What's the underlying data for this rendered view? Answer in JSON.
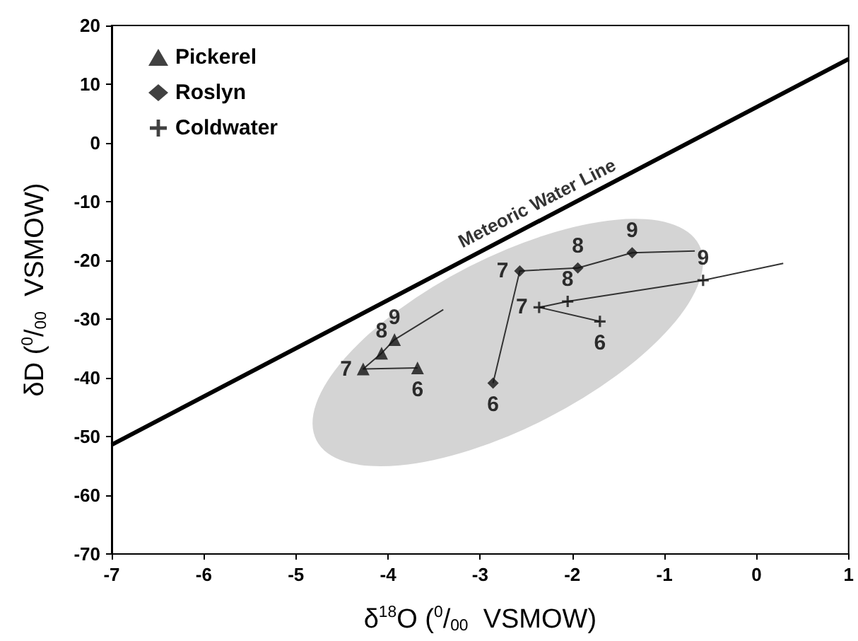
{
  "chart_data": {
    "type": "scatter",
    "xlabel": "δ$^{18}$O ($^{0}$/$_{00}$  VSMOW)",
    "ylabel": "δD ($^{0}$/$_{00}$  VSMOW)",
    "xlim": [
      -7,
      1
    ],
    "xticks": [
      -7,
      -6,
      -5,
      -4,
      -3,
      -2,
      -1,
      0,
      1
    ],
    "ylim": [
      -70,
      20
    ],
    "yticks": [
      -70,
      -60,
      -50,
      -40,
      -30,
      -20,
      -10,
      0,
      10,
      20
    ],
    "legend": "top left",
    "series": [
      {
        "name": "Pickerel",
        "marker": "triangle",
        "color": "#111111",
        "x": [
          -3.68,
          -4.27,
          -4.07,
          -3.93
        ],
        "values": [
          -38.3,
          -38.5,
          -35.8,
          -33.5
        ]
      },
      {
        "name": "Roslyn",
        "marker": "diamond",
        "color": "#111111",
        "x": [
          -2.86,
          -2.57,
          -1.94,
          -1.35
        ],
        "values": [
          -40.9,
          -21.8,
          -21.3,
          -18.7
        ]
      },
      {
        "name": "Coldwater",
        "marker": "cross",
        "color": "#111111",
        "x": [
          -1.7,
          -2.36,
          -2.05,
          -0.58
        ],
        "values": [
          -30.4,
          -28.0,
          -27.0,
          -23.4
        ]
      },
      {
        "type": "line",
        "marker": "none",
        "color": "#333333",
        "x": [
          -3.68,
          -4.27,
          -4.07,
          -3.93,
          -3.4
        ],
        "values": [
          -38.3,
          -38.5,
          -35.8,
          -33.5,
          -28.4
        ]
      },
      {
        "type": "line",
        "marker": "none",
        "color": "#333333",
        "x": [
          -2.86,
          -2.57,
          -1.94,
          -1.35,
          -0.67
        ],
        "values": [
          -40.9,
          -21.8,
          -21.3,
          -18.7,
          -18.4
        ]
      },
      {
        "type": "line",
        "marker": "none",
        "color": "#333333",
        "x": [
          -1.7,
          -2.36,
          -2.05,
          -0.58,
          0.29
        ],
        "values": [
          -30.4,
          -28.0,
          -27.0,
          -23.4,
          -20.5
        ]
      },
      {
        "type": "line",
        "marker": "none",
        "color": "#000000",
        "x": [
          -7,
          1
        ],
        "values": [
          -51.4,
          14.3
        ]
      }
    ],
    "annotations": [
      {
        "text": "Meteoric Water Line",
        "x": -2.3,
        "y": -12.8
      },
      {
        "text": "6",
        "x": -3.68,
        "y": -38.3
      },
      {
        "text": "7",
        "x": -4.27,
        "y": -38.5
      },
      {
        "text": "8",
        "x": -4.07,
        "y": -35.8
      },
      {
        "text": "9",
        "x": -3.93,
        "y": -33.5
      },
      {
        "text": "6",
        "x": -2.86,
        "y": -40.9
      },
      {
        "text": "7",
        "x": -2.57,
        "y": -21.8
      },
      {
        "text": "8",
        "x": -1.94,
        "y": -21.3
      },
      {
        "text": "9",
        "x": -1.35,
        "y": -18.7
      },
      {
        "text": "6",
        "x": -1.7,
        "y": -30.4
      },
      {
        "text": "7",
        "x": -2.36,
        "y": -28.0
      },
      {
        "text": "8",
        "x": -2.05,
        "y": -27.0
      },
      {
        "text": "9",
        "x": -0.58,
        "y": -23.4
      }
    ]
  }
}
